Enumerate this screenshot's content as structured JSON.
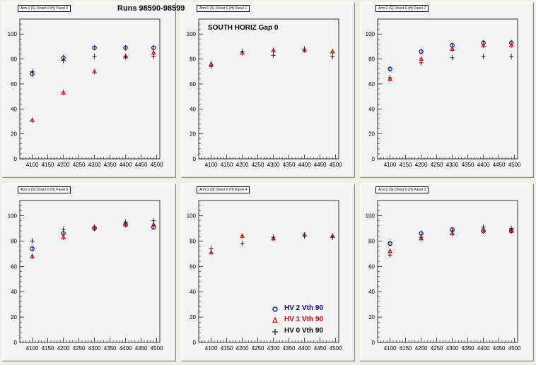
{
  "canvas": {
    "background": "#f0efe3",
    "pad_background": "#f4f4f4"
  },
  "run_label": "Runs 98590-98599",
  "legend": [
    {
      "label": "HV 2 Vth 90",
      "color": "#0000cc",
      "marker": "circle"
    },
    {
      "label": "HV 1 Vth 90",
      "color": "#cc0000",
      "marker": "triangle"
    },
    {
      "label": "HV 0 Vth 90",
      "color": "#000000",
      "marker": "cross"
    }
  ],
  "chart_data": [
    {
      "type": "scatter",
      "title": "Arm 0 (S) Orient 0 (H) Panel 0",
      "annotation": "",
      "xlim": [
        4060,
        4510
      ],
      "ylim": [
        0,
        112
      ],
      "xticks": [
        4100,
        4150,
        4200,
        4250,
        4300,
        4350,
        4400,
        4450,
        4500
      ],
      "yticks": [
        0,
        20,
        40,
        60,
        80,
        100
      ],
      "series": [
        {
          "name": "HV 2 Vth 90",
          "x": [
            4100,
            4200,
            4300,
            4400,
            4490
          ],
          "y": [
            68,
            81,
            89,
            89,
            89
          ]
        },
        {
          "name": "HV 1 Vth 90",
          "x": [
            4100,
            4200,
            4300,
            4400,
            4490
          ],
          "y": [
            31,
            53,
            70,
            82,
            85
          ]
        },
        {
          "name": "HV 0 Vth 90",
          "x": [
            4100,
            4200,
            4300,
            4400,
            4490
          ],
          "y": [
            70,
            79,
            82,
            82,
            82
          ]
        }
      ]
    },
    {
      "type": "scatter",
      "title": "Arm 0 (S) Orient 0 (H) Panel 1",
      "annotation": "SOUTH HORIZ Gap 0",
      "xlim": [
        4060,
        4510
      ],
      "ylim": [
        0,
        112
      ],
      "xticks": [
        4100,
        4150,
        4200,
        4250,
        4300,
        4350,
        4400,
        4450,
        4500
      ],
      "yticks": [
        0,
        20,
        40,
        60,
        80,
        100
      ],
      "series": [
        {
          "name": "HV 2 Vth 90",
          "x": [],
          "y": []
        },
        {
          "name": "HV 1 Vth 90",
          "x": [
            4100,
            4200,
            4300,
            4400,
            4490
          ],
          "y": [
            76,
            85,
            87,
            87,
            86
          ]
        },
        {
          "name": "HV 0 Vth 90",
          "x": [
            4100,
            4200,
            4300,
            4400,
            4490
          ],
          "y": [
            74,
            86,
            83,
            88,
            82
          ]
        }
      ]
    },
    {
      "type": "scatter",
      "title": "Arm 0 (S) Orient 0 (H) Panel 2",
      "annotation": "",
      "xlim": [
        4060,
        4510
      ],
      "ylim": [
        0,
        112
      ],
      "xticks": [
        4100,
        4150,
        4200,
        4250,
        4300,
        4350,
        4400,
        4450,
        4500
      ],
      "yticks": [
        0,
        20,
        40,
        60,
        80,
        100
      ],
      "series": [
        {
          "name": "HV 2 Vth 90",
          "x": [
            4100,
            4200,
            4300,
            4400,
            4490
          ],
          "y": [
            72,
            86,
            91,
            93,
            93
          ]
        },
        {
          "name": "HV 1 Vth 90",
          "x": [
            4100,
            4200,
            4300,
            4400,
            4490
          ],
          "y": [
            64,
            80,
            88,
            91,
            91
          ]
        },
        {
          "name": "HV 0 Vth 90",
          "x": [
            4100,
            4200,
            4300,
            4400,
            4490
          ],
          "y": [
            65,
            77,
            81,
            82,
            82
          ]
        }
      ]
    },
    {
      "type": "scatter",
      "title": "Arm 0 (S) Orient 0 (H) Panel 5",
      "annotation": "",
      "xlim": [
        4060,
        4510
      ],
      "ylim": [
        0,
        112
      ],
      "xticks": [
        4100,
        4150,
        4200,
        4250,
        4300,
        4350,
        4400,
        4450,
        4500
      ],
      "yticks": [
        0,
        20,
        40,
        60,
        80,
        100
      ],
      "series": [
        {
          "name": "HV 2 Vth 90",
          "x": [
            4100,
            4200,
            4300,
            4400,
            4490
          ],
          "y": [
            74,
            86,
            90,
            93,
            91
          ]
        },
        {
          "name": "HV 1 Vth 90",
          "x": [
            4100,
            4200,
            4300,
            4400,
            4490
          ],
          "y": [
            68,
            83,
            91,
            93,
            93
          ]
        },
        {
          "name": "HV 0 Vth 90",
          "x": [
            4100,
            4200,
            4300,
            4400,
            4490
          ],
          "y": [
            80,
            89,
            91,
            95,
            96
          ]
        }
      ]
    },
    {
      "type": "scatter",
      "title": "Arm 0 (S) Orient 0 (H) Panel 4",
      "annotation": "",
      "xlim": [
        4060,
        4510
      ],
      "ylim": [
        0,
        112
      ],
      "xticks": [
        4100,
        4150,
        4200,
        4250,
        4300,
        4350,
        4400,
        4450,
        4500
      ],
      "yticks": [
        0,
        20,
        40,
        60,
        80,
        100
      ],
      "series": [
        {
          "name": "HV 2 Vth 90",
          "x": [],
          "y": []
        },
        {
          "name": "HV 1 Vth 90",
          "x": [
            4100,
            4200,
            4300,
            4400,
            4490
          ],
          "y": [
            71,
            84,
            82,
            85,
            84
          ]
        },
        {
          "name": "HV 0 Vth 90",
          "x": [
            4100,
            4200,
            4300,
            4400,
            4490
          ],
          "y": [
            74,
            78,
            83,
            84,
            83
          ]
        }
      ]
    },
    {
      "type": "scatter",
      "title": "Arm 0 (S) Orient 0 (H) Panel 3",
      "annotation": "",
      "xlim": [
        4060,
        4510
      ],
      "ylim": [
        0,
        112
      ],
      "xticks": [
        4100,
        4150,
        4200,
        4250,
        4300,
        4350,
        4400,
        4450,
        4500
      ],
      "yticks": [
        0,
        20,
        40,
        60,
        80,
        100
      ],
      "series": [
        {
          "name": "HV 2 Vth 90",
          "x": [
            4100,
            4200,
            4300,
            4400,
            4490
          ],
          "y": [
            78,
            86,
            89,
            88,
            88
          ]
        },
        {
          "name": "HV 1 Vth 90",
          "x": [
            4100,
            4200,
            4300,
            4400,
            4490
          ],
          "y": [
            72,
            82,
            86,
            89,
            88
          ]
        },
        {
          "name": "HV 0 Vth 90",
          "x": [
            4100,
            4200,
            4300,
            4400,
            4490
          ],
          "y": [
            69,
            83,
            88,
            91,
            90
          ]
        }
      ]
    }
  ]
}
